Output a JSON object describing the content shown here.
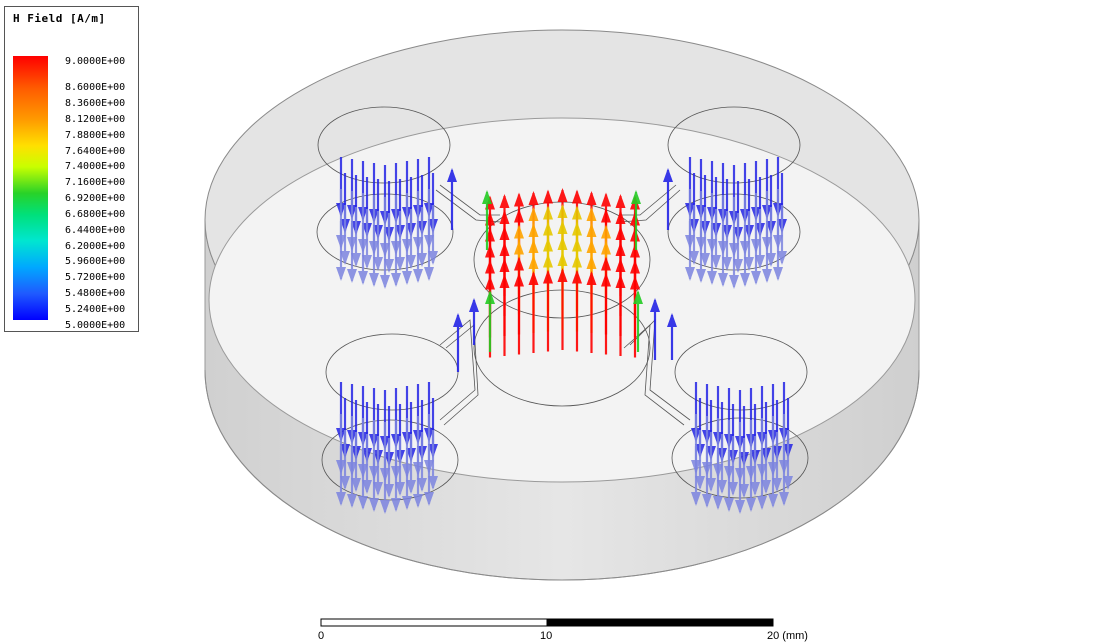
{
  "legend": {
    "title": "H Field [A/m]",
    "ticks": [
      "9.0000E+00",
      "8.6000E+00",
      "8.3600E+00",
      "8.1200E+00",
      "7.8800E+00",
      "7.6400E+00",
      "7.4000E+00",
      "7.1600E+00",
      "6.9200E+00",
      "6.6800E+00",
      "6.4400E+00",
      "6.2000E+00",
      "5.9600E+00",
      "5.7200E+00",
      "5.4800E+00",
      "5.2400E+00",
      "5.0000E+00"
    ]
  },
  "scale": {
    "label_0": "0",
    "label_10": "10",
    "label_20": "20 (mm)"
  },
  "colors": {
    "high": "#ff0000",
    "mid_high": "#ffa500",
    "center": "#e6c800",
    "mid": "#22cc22",
    "low": "#2424e6",
    "low_faded": "#7c84e0"
  }
}
